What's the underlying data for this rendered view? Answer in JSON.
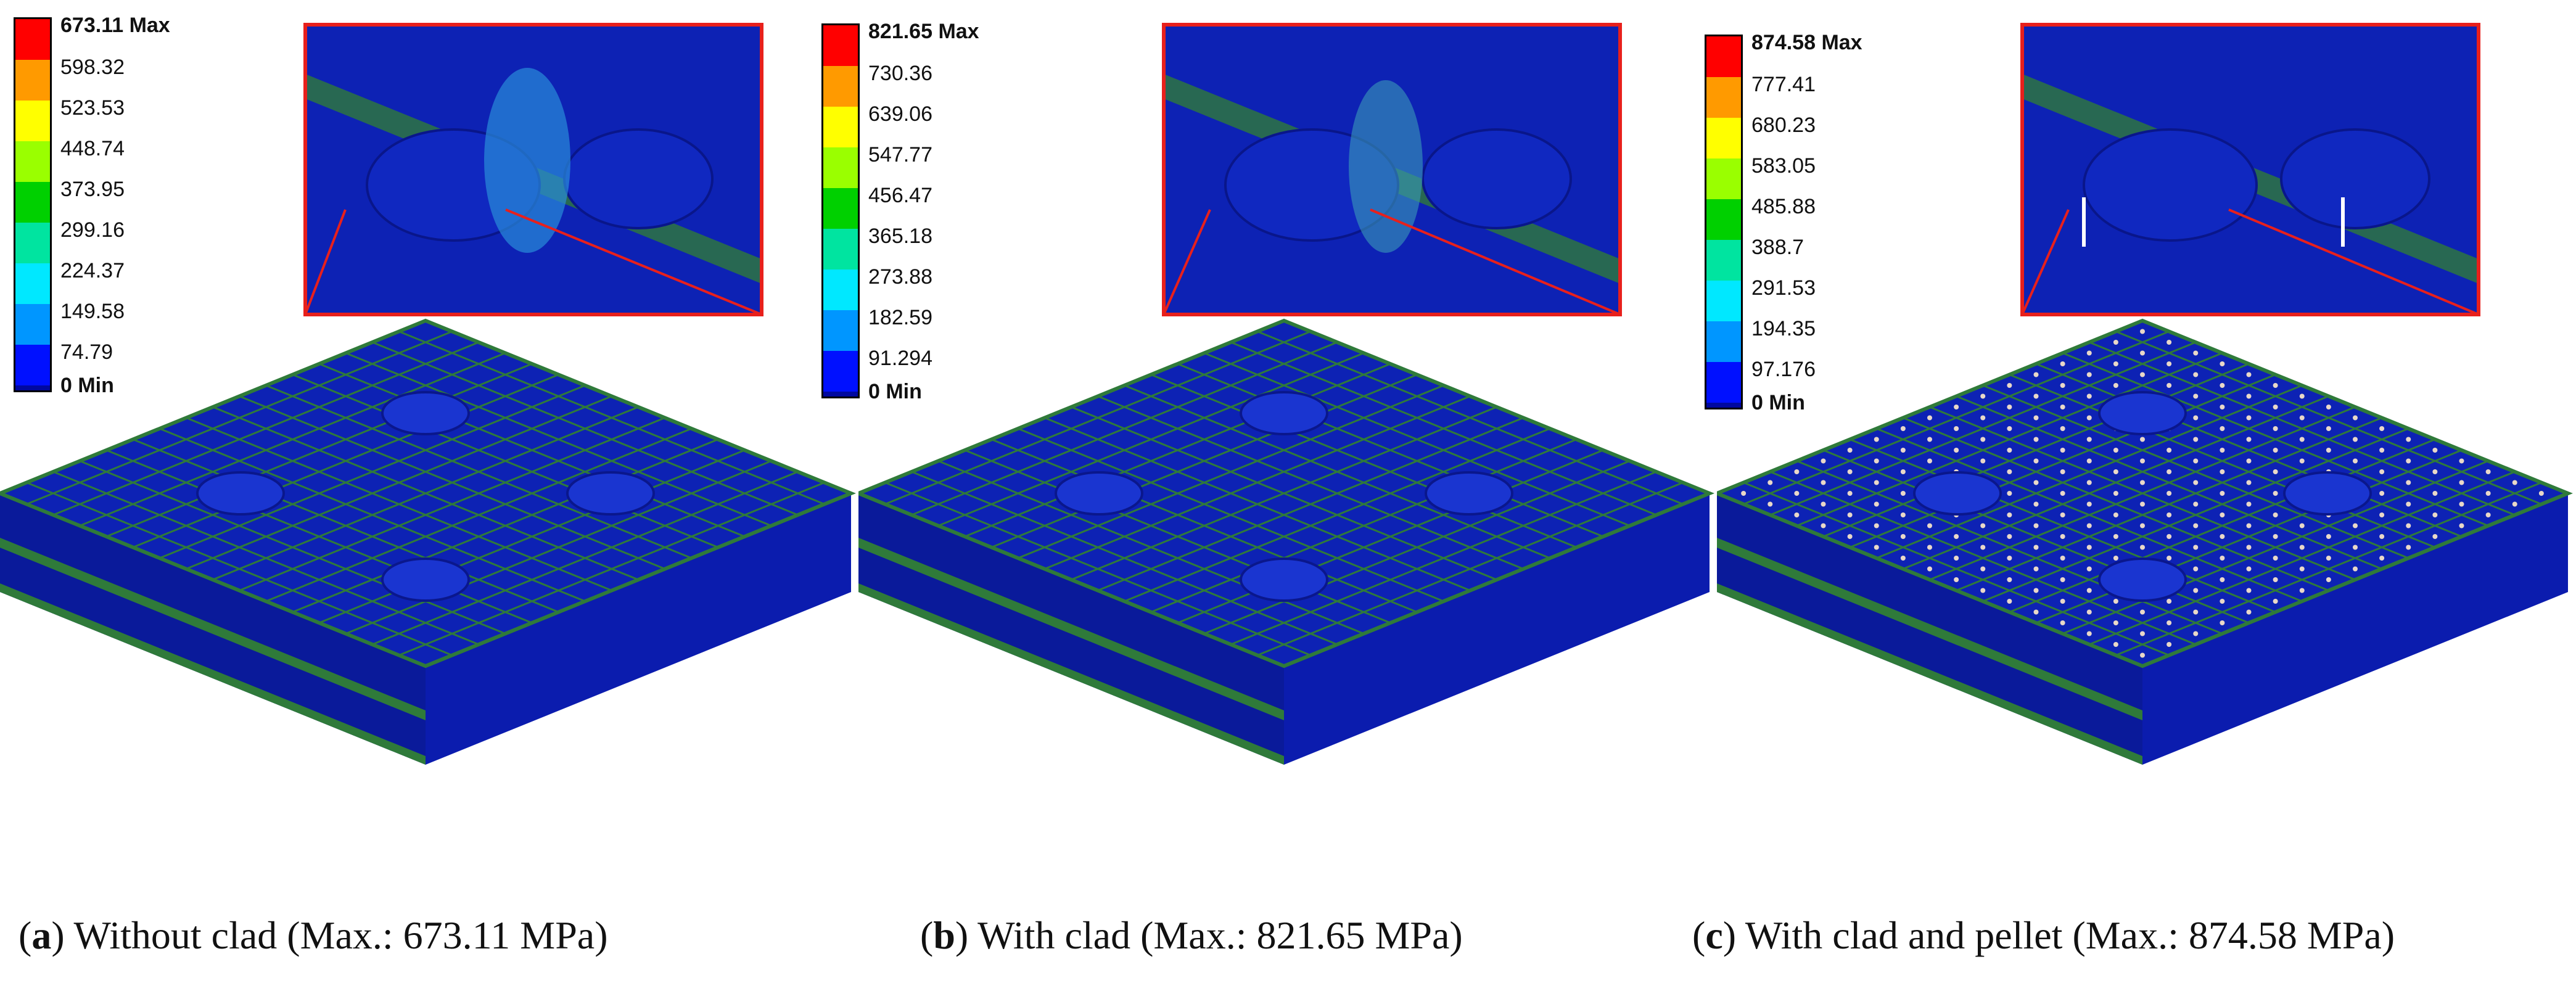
{
  "palette": {
    "min_blue": "#0b1fc8",
    "plate_blue": "#0d22b4",
    "edge_green": "#2f7a3a",
    "zoom_frame": "#e8201c",
    "bar_colors": [
      "#ff0000",
      "#ff9a00",
      "#ffff00",
      "#9aff00",
      "#00d000",
      "#00e4a0",
      "#00e8ff",
      "#0096ff",
      "#0010ff"
    ]
  },
  "panels": [
    {
      "id": "a",
      "legend": {
        "max_label": "673.11 Max",
        "levels": [
          "598.32",
          "523.53",
          "448.74",
          "373.95",
          "299.16",
          "224.37",
          "149.58",
          "74.79"
        ],
        "min_label": "0 Min"
      },
      "caption": {
        "letter": "a",
        "text": ") Without clad (Max.: 673.11 MPa)"
      },
      "max_value_mpa": 673.11
    },
    {
      "id": "b",
      "legend": {
        "max_label": "821.65 Max",
        "levels": [
          "730.36",
          "639.06",
          "547.77",
          "456.47",
          "365.18",
          "273.88",
          "182.59",
          "91.294"
        ],
        "min_label": "0 Min"
      },
      "caption": {
        "letter": "b",
        "text": ") With clad (Max.: 821.65 MPa)"
      },
      "max_value_mpa": 821.65
    },
    {
      "id": "c",
      "legend": {
        "max_label": "874.58 Max",
        "levels": [
          "777.41",
          "680.23",
          "583.05",
          "485.88",
          "388.7",
          "291.53",
          "194.35",
          "97.176"
        ],
        "min_label": "0 Min"
      },
      "caption": {
        "letter": "c",
        "text": ") With clad and pellet (Max.: 874.58 MPa)"
      },
      "max_value_mpa": 874.58
    }
  ]
}
